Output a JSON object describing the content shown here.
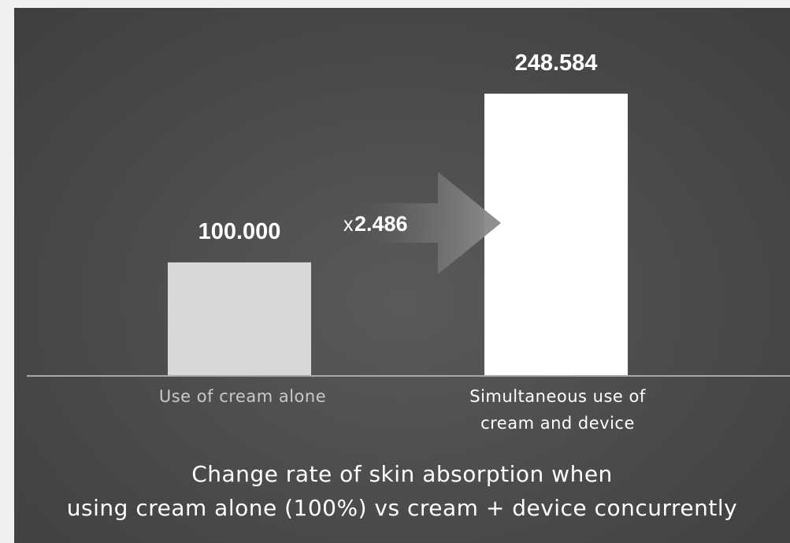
{
  "chart_data": {
    "type": "bar",
    "categories": [
      "Use of cream alone",
      "Simultaneous use of cream and device"
    ],
    "category_lines": [
      [
        "Use of cream alone"
      ],
      [
        "Simultaneous use of",
        "cream and device"
      ]
    ],
    "values": [
      100.0,
      248.584
    ],
    "value_labels": [
      "100.000",
      "248.584"
    ],
    "ylim": [
      0,
      270
    ],
    "bar_colors": [
      "#d8d8d8",
      "#ffffff"
    ],
    "annotation": {
      "prefix": "x",
      "value": "2.486"
    },
    "caption_lines": [
      "Change rate of skin absorption when",
      "using cream alone (100%) vs cream + device concurrently"
    ],
    "grid": false,
    "legend": "none"
  }
}
